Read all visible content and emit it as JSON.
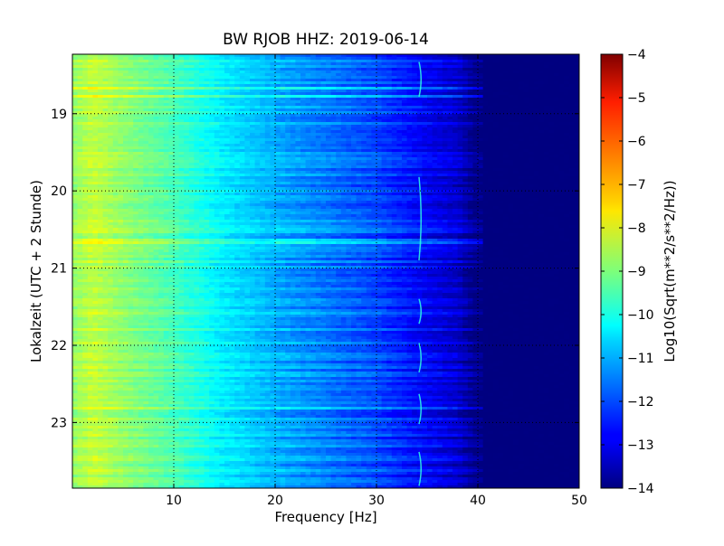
{
  "chart_data": {
    "type": "heatmap",
    "title": "BW RJOB HHZ: 2019-06-14",
    "xlabel": "Frequency [Hz]",
    "ylabel": "Lokalzeit (UTC + 2 Stunde)",
    "xlim": [
      0,
      50
    ],
    "ylim_hours": [
      18.23,
      23.85
    ],
    "y_inverted": true,
    "x_ticks": [
      10,
      20,
      30,
      40,
      50
    ],
    "x_tick_labels": [
      "10",
      "20",
      "30",
      "40",
      "50"
    ],
    "y_ticks": [
      19,
      20,
      21,
      22,
      23
    ],
    "y_tick_labels": [
      "19",
      "20",
      "21",
      "22",
      "23"
    ],
    "grid": true,
    "colormap": "jet",
    "colorbar": {
      "label": "Log10(Sqrt(m**2/s**2/Hz))",
      "range": [
        -14,
        -4
      ],
      "ticks": [
        -4,
        -5,
        -6,
        -7,
        -8,
        -9,
        -10,
        -11,
        -12,
        -13,
        -14
      ],
      "tick_labels": [
        "−4",
        "−5",
        "−6",
        "−7",
        "−8",
        "−9",
        "−10",
        "−11",
        "−12",
        "−13",
        "−14"
      ]
    },
    "spectrum_profile": {
      "frequency_hz": [
        0,
        2,
        5,
        10,
        15,
        20,
        25,
        30,
        35,
        38,
        40,
        50
      ],
      "log_amplitude": [
        -8.8,
        -8.3,
        -8.8,
        -9.5,
        -10.4,
        -11.0,
        -11.5,
        -12.0,
        -12.8,
        -13.2,
        -14.0,
        -14.0
      ]
    },
    "bright_bands_hour": [
      18.67,
      18.78,
      20.52,
      20.65,
      22.82
    ],
    "tonal_line_hz": 34.3
  }
}
